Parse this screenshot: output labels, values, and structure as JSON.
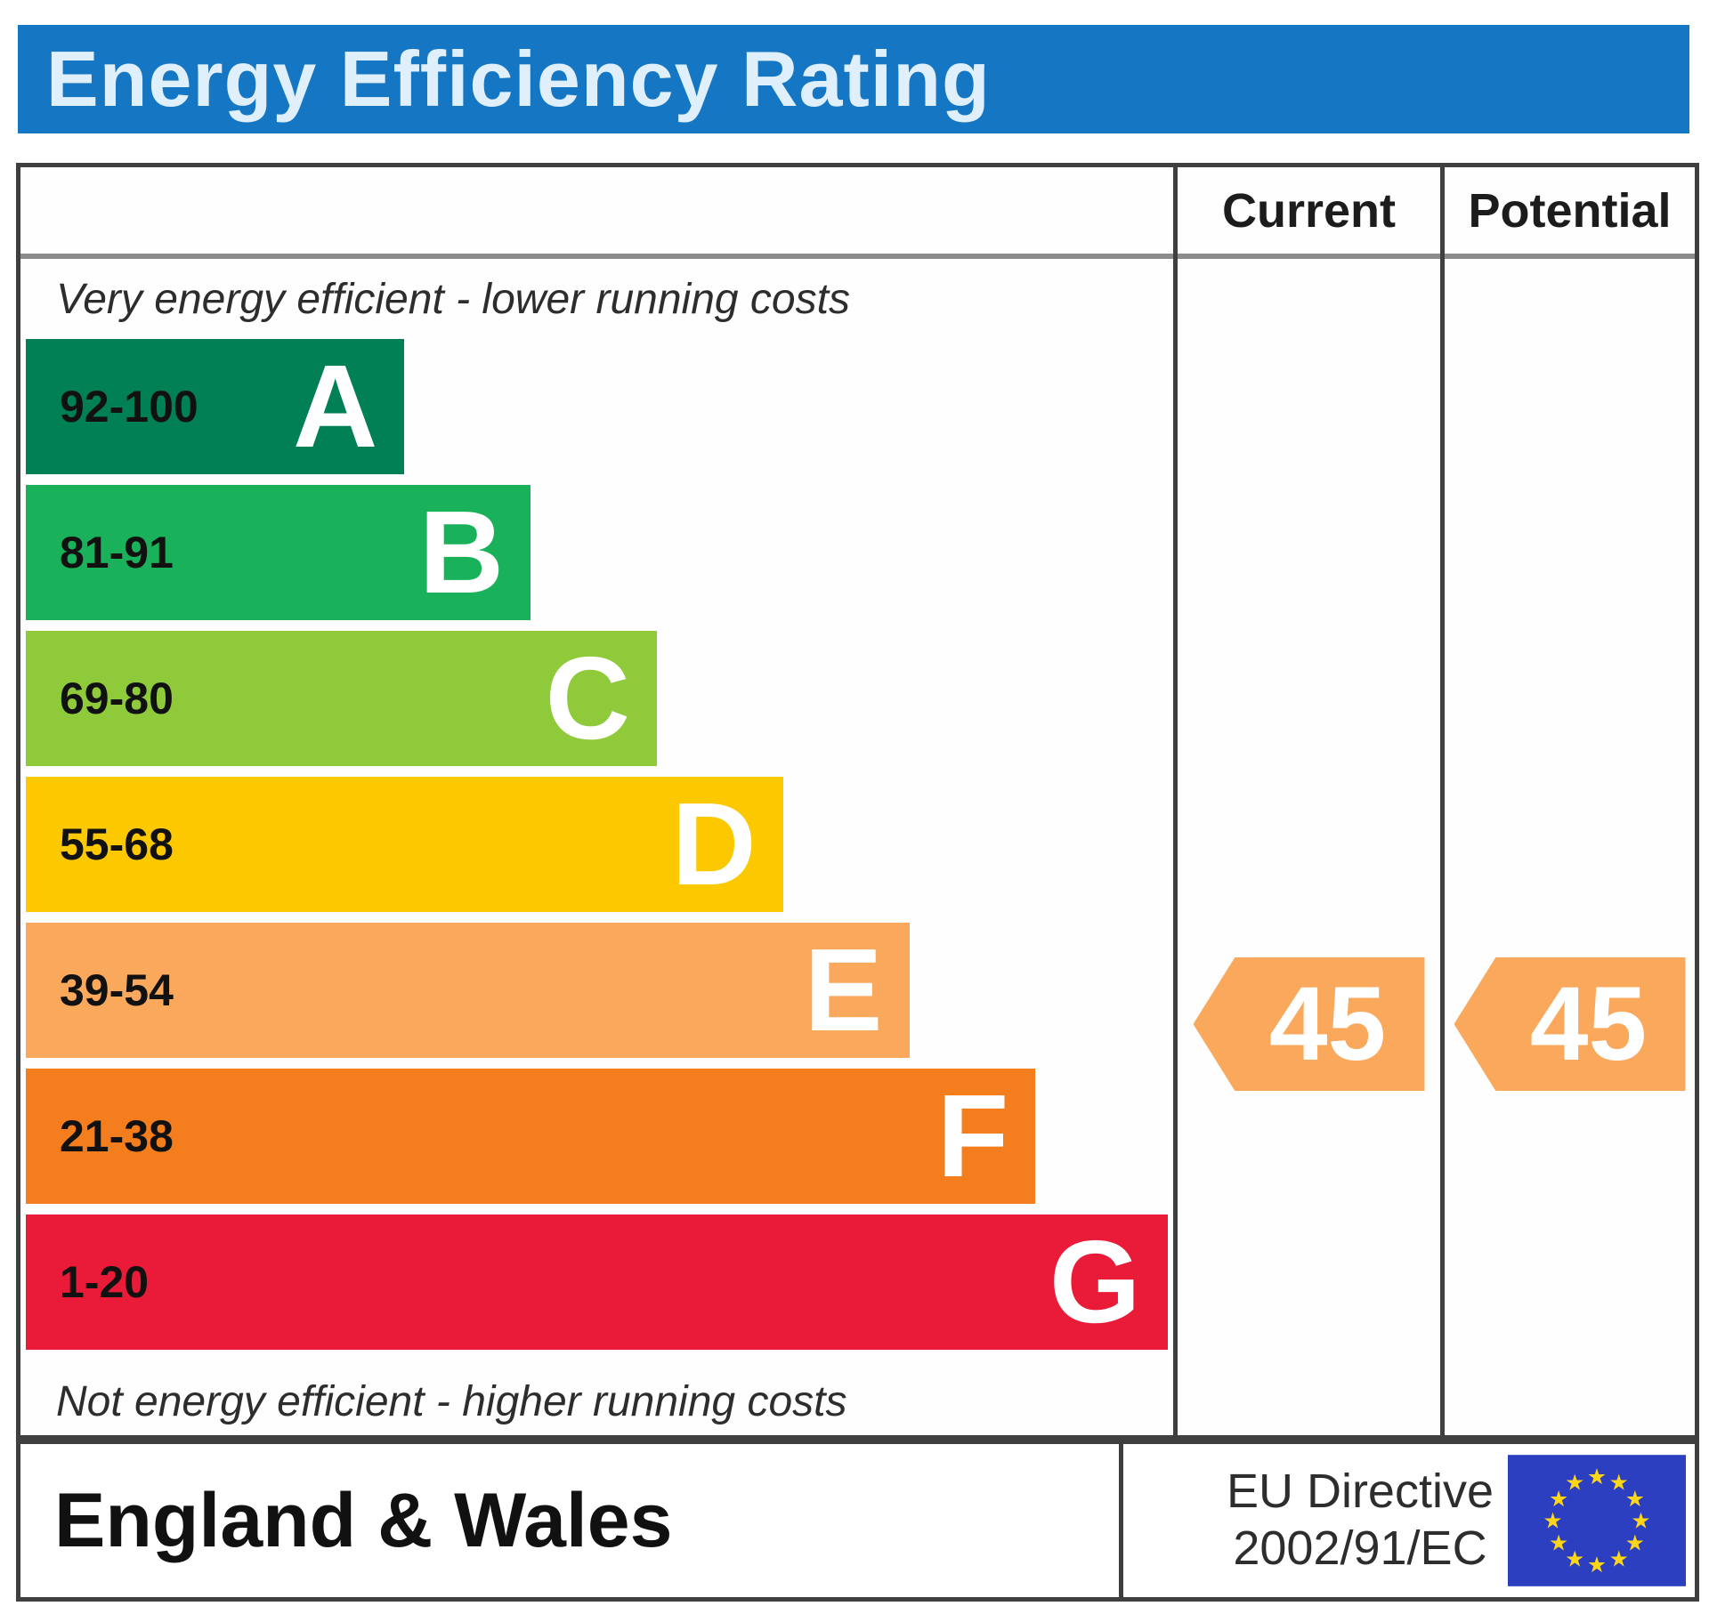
{
  "title": "Energy Efficiency Rating",
  "columns": {
    "current": "Current",
    "potential": "Potential"
  },
  "top_note": "Very energy efficient - lower running costs",
  "bottom_note": "Not energy efficient - higher running costs",
  "bands": [
    {
      "letter": "A",
      "range": "92-100",
      "color": "#008054",
      "bar_length_pct": 33
    },
    {
      "letter": "B",
      "range": "81-91",
      "color": "#1ab15b",
      "bar_length_pct": 44
    },
    {
      "letter": "C",
      "range": "69-80",
      "color": "#8fca3b",
      "bar_length_pct": 55
    },
    {
      "letter": "D",
      "range": "55-68",
      "color": "#fcc900",
      "bar_length_pct": 66
    },
    {
      "letter": "E",
      "range": "39-54",
      "color": "#faa95c",
      "bar_length_pct": 77
    },
    {
      "letter": "F",
      "range": "21-38",
      "color": "#f47d1e",
      "bar_length_pct": 88
    },
    {
      "letter": "G",
      "range": "1-20",
      "color": "#ea1b38",
      "bar_length_pct": 99.5
    }
  ],
  "ratings": {
    "current": {
      "value": "45",
      "band": "E",
      "color": "#faa95c"
    },
    "potential": {
      "value": "45",
      "band": "E",
      "color": "#faa95c"
    }
  },
  "footer": {
    "region": "England & Wales",
    "directive_line1": "EU Directive",
    "directive_line2": "2002/91/EC"
  },
  "colors": {
    "title_bar": "#1577c4",
    "title_text": "#dff0fc",
    "table_border": "#3f3f3f",
    "header_divider": "#8c8c8c",
    "eu_flag_bg": "#2b3fc0",
    "eu_star": "#ffd617"
  },
  "chart_data": {
    "type": "bar",
    "title": "Energy Efficiency Rating",
    "categories": [
      "A",
      "B",
      "C",
      "D",
      "E",
      "F",
      "G"
    ],
    "band_ranges": [
      "92-100",
      "81-91",
      "69-80",
      "55-68",
      "39-54",
      "21-38",
      "1-20"
    ],
    "band_colors": [
      "#008054",
      "#1ab15b",
      "#8fca3b",
      "#fcc900",
      "#faa95c",
      "#f47d1e",
      "#ea1b38"
    ],
    "bar_lengths_pct": [
      33,
      44,
      55,
      66,
      77,
      88,
      99.5
    ],
    "current_rating": 45,
    "current_band": "E",
    "potential_rating": 45,
    "potential_band": "E",
    "notes": [
      "Very energy efficient - lower running costs",
      "Not energy efficient - higher running costs"
    ],
    "region": "England & Wales",
    "directive": "EU Directive 2002/91/EC",
    "legend_position": "top-right-columns",
    "grid": false
  }
}
